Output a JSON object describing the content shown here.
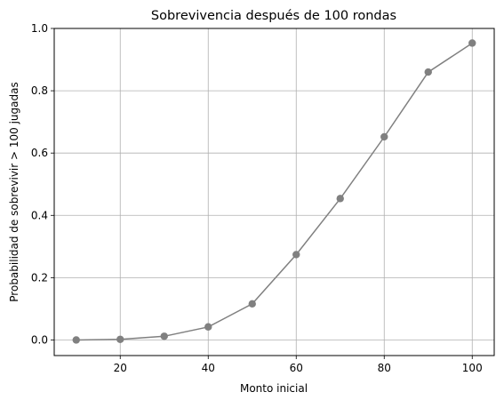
{
  "chart_data": {
    "type": "line",
    "title": "Sobrevivencia después de 100 rondas",
    "xlabel": "Monto inicial",
    "ylabel": "Probabilidad de sobrevivir > 100 jugadas",
    "xlim": [
      5,
      105
    ],
    "ylim": [
      -0.05,
      1.0
    ],
    "xticks": [
      20,
      40,
      60,
      80,
      100
    ],
    "xtick_labels": [
      "20",
      "40",
      "60",
      "80",
      "100"
    ],
    "yticks": [
      0.0,
      0.2,
      0.4,
      0.6,
      0.8,
      1.0
    ],
    "ytick_labels": [
      "0.0",
      "0.2",
      "0.4",
      "0.6",
      "0.8",
      "1.0"
    ],
    "grid": true,
    "series": [
      {
        "x": [
          10,
          20,
          30,
          40,
          50,
          60,
          70,
          80,
          90,
          100
        ],
        "y": [
          0.0,
          0.002,
          0.012,
          0.042,
          0.116,
          0.274,
          0.454,
          0.652,
          0.86,
          0.953
        ],
        "color": "#808080",
        "marker": "circle"
      }
    ]
  }
}
